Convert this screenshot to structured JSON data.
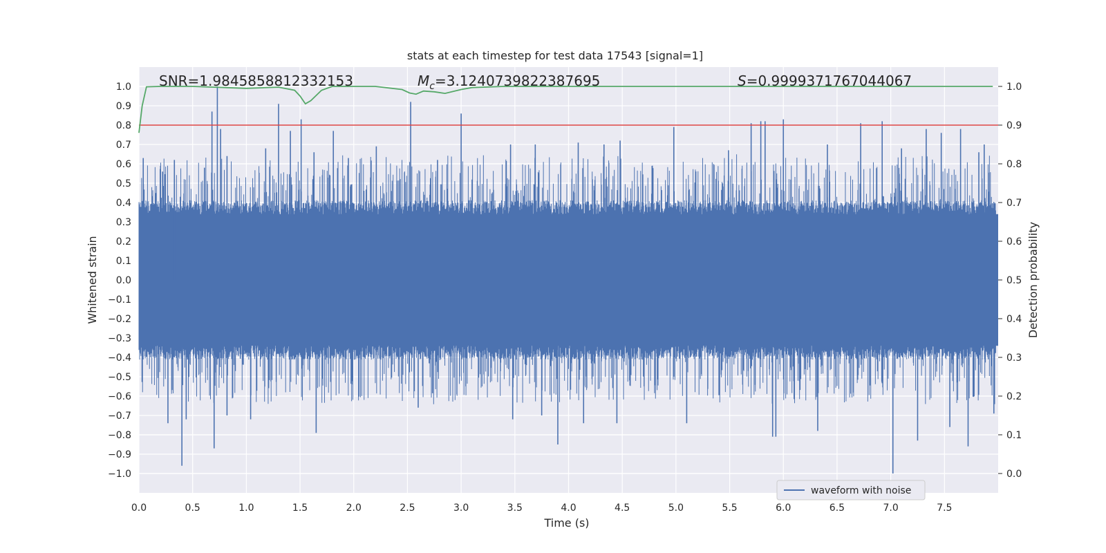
{
  "chart_data": {
    "type": "line",
    "title": "stats at each timestep for test data 17543 [signal=1]",
    "xlabel": "Time (s)",
    "ylabel": "Whitened strain",
    "y2label": "Detection probability",
    "xlim": [
      0.0,
      8.0
    ],
    "ylim": [
      -1.1,
      1.1
    ],
    "y2lim": [
      -0.05,
      1.05
    ],
    "xticks": [
      "0.0",
      "0.5",
      "1.0",
      "1.5",
      "2.0",
      "2.5",
      "3.0",
      "3.5",
      "4.0",
      "4.5",
      "5.0",
      "5.5",
      "6.0",
      "6.5",
      "7.0",
      "7.5"
    ],
    "yticks": [
      "1.0",
      "0.9",
      "0.8",
      "0.7",
      "0.6",
      "0.5",
      "0.4",
      "0.3",
      "0.2",
      "0.1",
      "0.0",
      "−0.1",
      "−0.2",
      "−0.3",
      "−0.4",
      "−0.5",
      "−0.6",
      "−0.7",
      "−0.8",
      "−0.9",
      "−1.0"
    ],
    "y2ticks": [
      "1.0",
      "0.9",
      "0.8",
      "0.7",
      "0.6",
      "0.5",
      "0.4",
      "0.3",
      "0.2",
      "0.1",
      "0.0"
    ],
    "grid": true,
    "legend": {
      "position": "lower-right",
      "entries": [
        "waveform with noise"
      ]
    },
    "annotations": {
      "snr": "SNR=1.9845858812332153",
      "mc_symbol": "M",
      "mc_sub": "c",
      "mc_value": "=3.1240739822387695",
      "s_symbol": "S",
      "s_value": "=0.9999371767044067"
    },
    "series": [
      {
        "name": "waveform with noise",
        "color": "#4c72b0",
        "axis": "left",
        "spikes": {
          "positive": [
            [
              0.04,
              0.63
            ],
            [
              0.22,
              0.56
            ],
            [
              0.33,
              0.52
            ],
            [
              0.33,
              0.62
            ],
            [
              0.61,
              0.58
            ],
            [
              0.68,
              0.87
            ],
            [
              0.73,
              1.0
            ],
            [
              0.76,
              0.78
            ],
            [
              0.82,
              0.64
            ],
            [
              1.18,
              0.68
            ],
            [
              1.3,
              0.91
            ],
            [
              1.41,
              0.77
            ],
            [
              1.51,
              0.83
            ],
            [
              1.63,
              0.66
            ],
            [
              1.81,
              0.77
            ],
            [
              1.95,
              0.63
            ],
            [
              2.21,
              0.69
            ],
            [
              2.53,
              0.92
            ],
            [
              2.78,
              0.62
            ],
            [
              3.0,
              0.86
            ],
            [
              3.46,
              0.7
            ],
            [
              3.69,
              0.7
            ],
            [
              4.09,
              0.71
            ],
            [
              4.33,
              0.7
            ],
            [
              4.48,
              0.72
            ],
            [
              4.98,
              0.79
            ],
            [
              5.49,
              0.67
            ],
            [
              5.7,
              0.81
            ],
            [
              5.79,
              0.82
            ],
            [
              5.83,
              0.82
            ],
            [
              6.0,
              0.83
            ],
            [
              6.41,
              0.7
            ],
            [
              6.72,
              0.81
            ],
            [
              6.92,
              0.82
            ],
            [
              7.1,
              0.68
            ],
            [
              7.33,
              0.78
            ],
            [
              7.47,
              0.76
            ],
            [
              7.65,
              0.78
            ],
            [
              7.82,
              0.66
            ],
            [
              7.87,
              0.7
            ]
          ],
          "negative": [
            [
              0.4,
              -0.96
            ],
            [
              0.44,
              -0.72
            ],
            [
              0.27,
              -0.74
            ],
            [
              0.7,
              -0.87
            ],
            [
              0.82,
              -0.7
            ],
            [
              1.04,
              -0.72
            ],
            [
              1.65,
              -0.79
            ],
            [
              2.6,
              -0.66
            ],
            [
              3.48,
              -0.72
            ],
            [
              3.75,
              -0.7
            ],
            [
              3.9,
              -0.85
            ],
            [
              4.14,
              -0.74
            ],
            [
              4.45,
              -0.74
            ],
            [
              5.1,
              -0.74
            ],
            [
              5.9,
              -0.81
            ],
            [
              5.93,
              -0.81
            ],
            [
              6.32,
              -0.78
            ],
            [
              7.02,
              -1.0
            ],
            [
              7.25,
              -0.83
            ],
            [
              7.55,
              -0.76
            ],
            [
              7.72,
              -0.86
            ],
            [
              7.96,
              -0.69
            ]
          ]
        }
      },
      {
        "name": "",
        "color": "#dd4444",
        "axis": "right",
        "type": "hline",
        "y": 0.9
      },
      {
        "name": "",
        "color": "#55a868",
        "axis": "right",
        "x": [
          0.0,
          0.03,
          0.07,
          0.2,
          0.5,
          1.0,
          1.3,
          1.45,
          1.5,
          1.55,
          1.6,
          1.7,
          1.8,
          2.0,
          2.2,
          2.45,
          2.52,
          2.58,
          2.65,
          2.75,
          2.85,
          3.0,
          3.1,
          3.4,
          4.0,
          5.0,
          6.0,
          7.0,
          7.95
        ],
        "y": [
          0.88,
          0.95,
          0.999,
          1.0,
          1.0,
          0.995,
          0.998,
          0.99,
          0.975,
          0.955,
          0.963,
          0.99,
          1.0,
          1.0,
          1.0,
          0.992,
          0.983,
          0.98,
          0.988,
          0.986,
          0.982,
          0.992,
          0.997,
          1.0,
          1.0,
          1.0,
          1.0,
          1.0,
          1.0
        ]
      }
    ]
  }
}
